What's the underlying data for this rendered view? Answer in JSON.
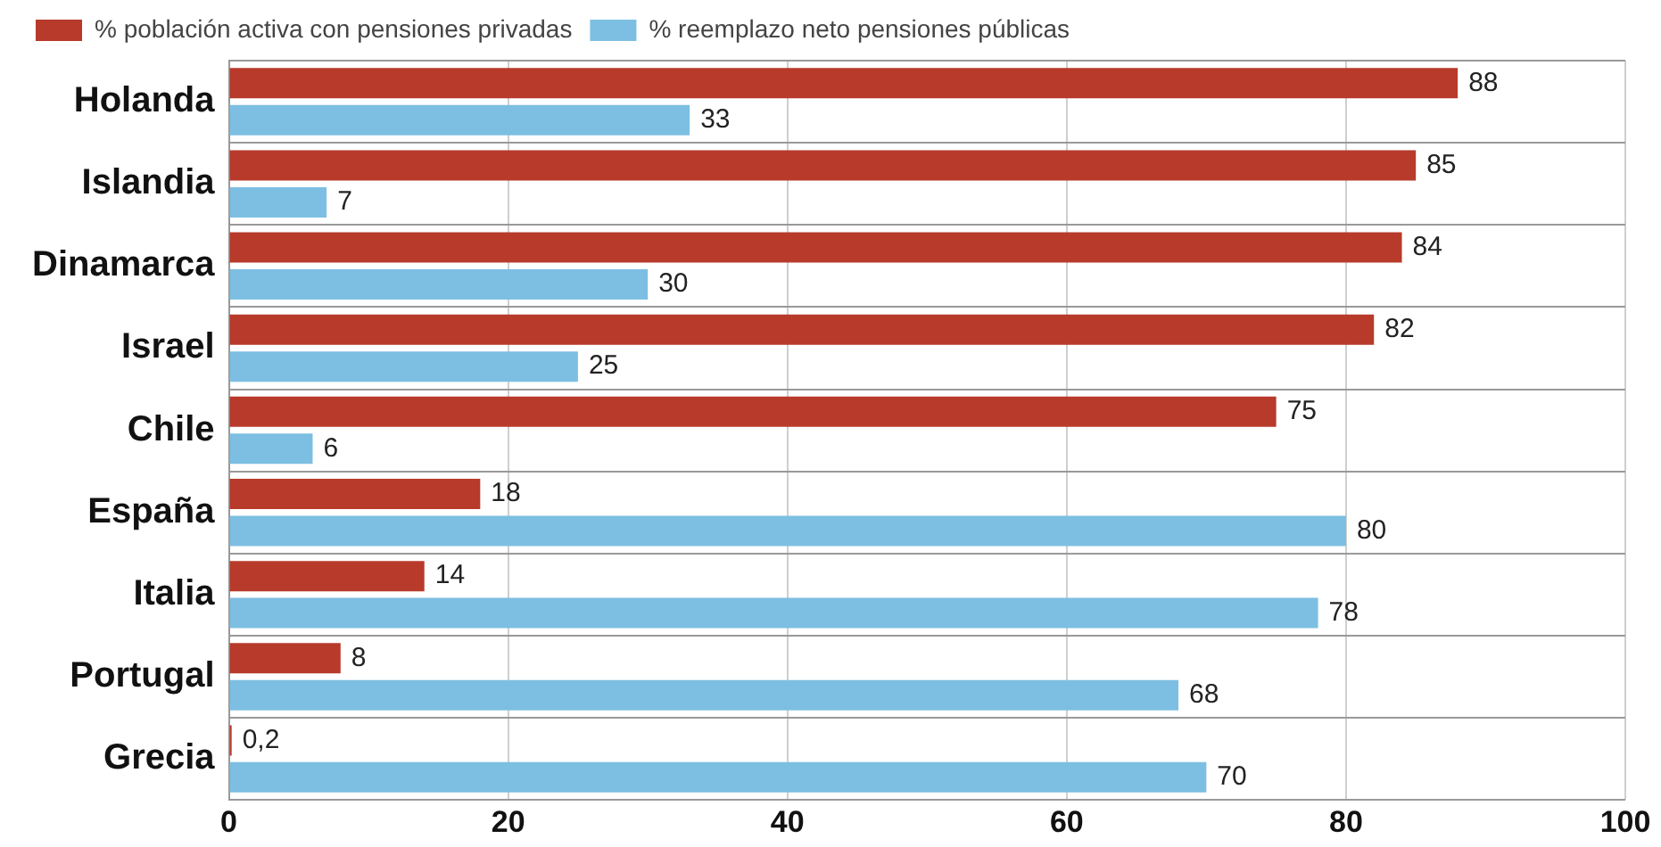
{
  "chart_data": {
    "type": "bar",
    "orientation": "horizontal",
    "categories": [
      "Holanda",
      "Islandia",
      "Dinamarca",
      "Israel",
      "Chile",
      "España",
      "Italia",
      "Portugal",
      "Grecia"
    ],
    "series": [
      {
        "name": "% población activa con pensiones privadas",
        "color": "#b83a2b",
        "values": [
          88,
          85,
          84,
          82,
          75,
          18,
          14,
          8,
          0.2
        ],
        "value_labels": [
          "88",
          "85",
          "84",
          "82",
          "75",
          "18",
          "14",
          "8",
          "0,2"
        ]
      },
      {
        "name": "% reemplazo neto pensiones públicas",
        "color": "#7dbfe2",
        "values": [
          33,
          7,
          30,
          25,
          6,
          80,
          78,
          68,
          70
        ],
        "value_labels": [
          "33",
          "7",
          "30",
          "25",
          "6",
          "80",
          "78",
          "68",
          "70"
        ]
      }
    ],
    "xlim": [
      0,
      100
    ],
    "xticks": [
      0,
      20,
      40,
      60,
      80,
      100
    ],
    "grid": true,
    "legend": "top left"
  }
}
